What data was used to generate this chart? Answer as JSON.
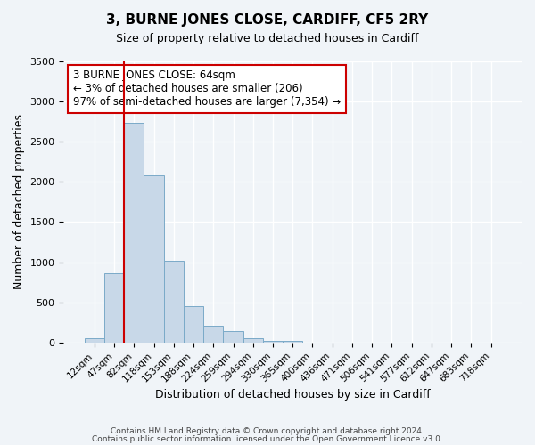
{
  "title": "3, BURNE JONES CLOSE, CARDIFF, CF5 2RY",
  "subtitle": "Size of property relative to detached houses in Cardiff",
  "xlabel": "Distribution of detached houses by size in Cardiff",
  "ylabel": "Number of detached properties",
  "bin_labels": [
    "12sqm",
    "47sqm",
    "82sqm",
    "118sqm",
    "153sqm",
    "188sqm",
    "224sqm",
    "259sqm",
    "294sqm",
    "330sqm",
    "365sqm",
    "400sqm",
    "436sqm",
    "471sqm",
    "506sqm",
    "541sqm",
    "577sqm",
    "612sqm",
    "647sqm",
    "683sqm",
    "718sqm"
  ],
  "bar_values": [
    55,
    860,
    2730,
    2080,
    1020,
    455,
    205,
    145,
    55,
    25,
    20,
    0,
    0,
    0,
    0,
    0,
    0,
    0,
    0,
    0,
    0
  ],
  "bar_color": "#c8d8e8",
  "bar_edgecolor": "#7aaac8",
  "vline_color": "#cc0000",
  "property_bin_index": 1,
  "ylim": [
    0,
    3500
  ],
  "yticks": [
    0,
    500,
    1000,
    1500,
    2000,
    2500,
    3000,
    3500
  ],
  "annotation_text": "3 BURNE JONES CLOSE: 64sqm\n← 3% of detached houses are smaller (206)\n97% of semi-detached houses are larger (7,354) →",
  "annotation_box_edgecolor": "#cc0000",
  "footer_line1": "Contains HM Land Registry data © Crown copyright and database right 2024.",
  "footer_line2": "Contains public sector information licensed under the Open Government Licence v3.0.",
  "bg_color": "#f0f4f8"
}
